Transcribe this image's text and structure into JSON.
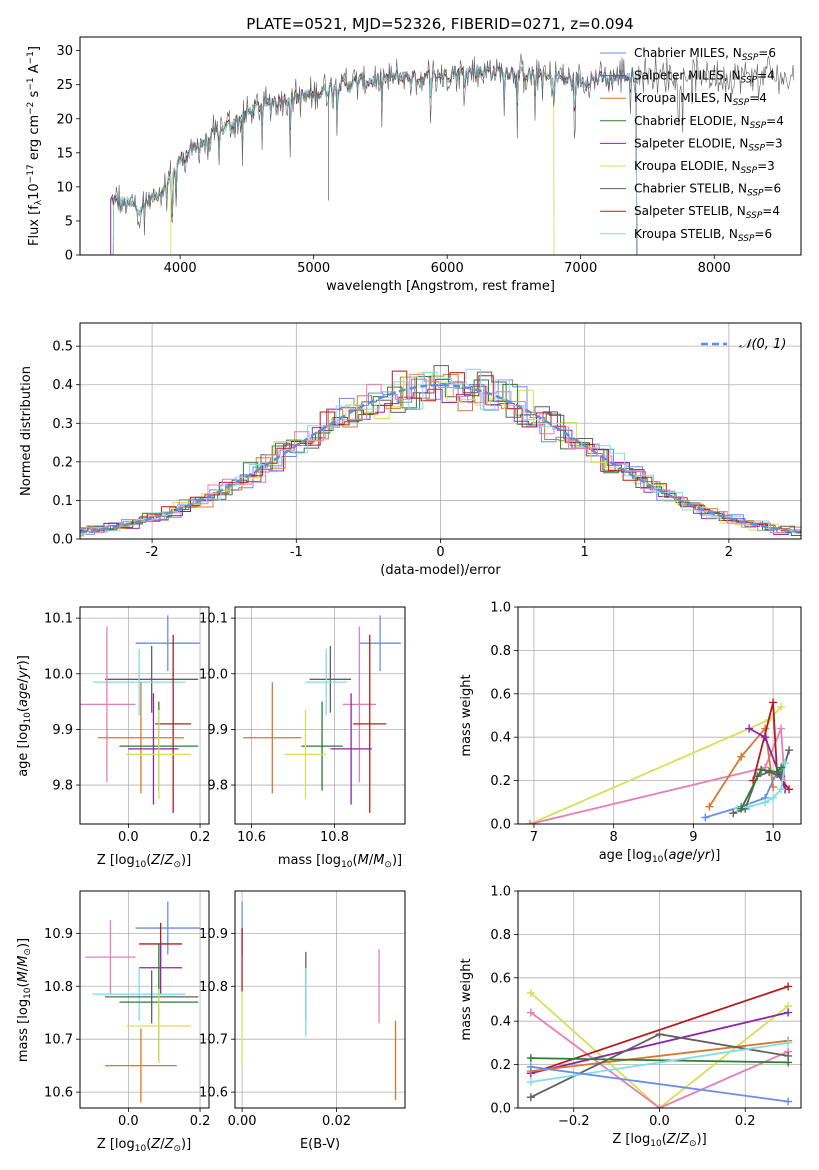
{
  "figure": {
    "title": "PLATE=0521, MJD=52326, FIBERID=0271, z=0.094"
  },
  "colors": {
    "Chabrier MILES": "#6a8ee8",
    "Salpeter MILES": "#9b2fb0",
    "Kroupa MILES": "#d9782c",
    "Chabrier ELODIE": "#2e7d32",
    "Salpeter ELODIE": "#8e24aa",
    "Kroupa ELODIE": "#d4e157",
    "Chabrier STELIB": "#616161",
    "Salpeter STELIB": "#b71c1c",
    "Kroupa STELIB": "#80deea",
    "pink": "#e57fb5"
  },
  "chart_data": [
    {
      "id": "spectrum",
      "type": "line",
      "xlabel": "wavelength [Angstrom, rest frame]",
      "ylabel": "Flux [f_λ10^-17 erg cm^-2 s^-1 A^-1]",
      "xlim": [
        3250,
        8650
      ],
      "ylim": [
        0,
        32
      ],
      "xticks": [
        4000,
        5000,
        6000,
        7000,
        8000
      ],
      "yticks": [
        0,
        5,
        10,
        15,
        20,
        25,
        30
      ],
      "legend_position": "upper right",
      "series": [
        {
          "name": "Chabrier MILES, N_SSP=6",
          "color_key": "Chabrier MILES"
        },
        {
          "name": "Salpeter MILES, N_SSP=4",
          "color_key": "Salpeter MILES"
        },
        {
          "name": "Kroupa MILES, N_SSP=4",
          "color_key": "Kroupa MILES"
        },
        {
          "name": "Chabrier ELODIE, N_SSP=4",
          "color_key": "Chabrier ELODIE"
        },
        {
          "name": "Salpeter ELODIE, N_SSP=3",
          "color_key": "Salpeter ELODIE"
        },
        {
          "name": "Kroupa ELODIE, N_SSP=3",
          "color_key": "Kroupa ELODIE"
        },
        {
          "name": "Chabrier STELIB, N_SSP=6",
          "color_key": "Chabrier STELIB"
        },
        {
          "name": "Salpeter STELIB, N_SSP=4",
          "color_key": "Salpeter STELIB"
        },
        {
          "name": "Kroupa STELIB, N_SSP=6",
          "color_key": "Kroupa STELIB"
        }
      ],
      "continuum": {
        "x": [
          3500,
          3700,
          3900,
          4000,
          4200,
          4400,
          4600,
          4800,
          5000,
          5200,
          5400,
          5600,
          5800,
          6000,
          6200,
          6400,
          6600,
          6800,
          7000,
          7200,
          7400
        ],
        "y": [
          8,
          7,
          10,
          14,
          17,
          19.5,
          22,
          23,
          23.5,
          25,
          25.5,
          26,
          26,
          26.5,
          27,
          27,
          26.5,
          26,
          25.5,
          26,
          26.5
        ]
      }
    },
    {
      "id": "residuals",
      "type": "line",
      "xlabel": "(data-model)/error",
      "ylabel": "Normed distribution",
      "xlim": [
        -2.5,
        2.5
      ],
      "ylim": [
        0,
        0.56
      ],
      "xticks": [
        -2,
        -1,
        0,
        1,
        2
      ],
      "yticks": [
        0.0,
        0.1,
        0.2,
        0.3,
        0.4,
        0.5
      ],
      "legend": "𝒩(0, 1)",
      "legend_position": "upper right",
      "grid": true
    },
    {
      "id": "age_vs_Z",
      "type": "scatter",
      "xlabel": "Z [log10(Z/Z⊙)]",
      "ylabel": "age [log10(age/yr)]",
      "xlim": [
        -0.135,
        0.225
      ],
      "ylim": [
        9.73,
        10.12
      ],
      "xticks": [
        0.0,
        0.2
      ],
      "yticks": [
        9.8,
        9.9,
        10.0,
        10.1
      ],
      "grid": true,
      "points": [
        {
          "color_key": "Chabrier MILES",
          "x": 0.11,
          "y": 10.055,
          "xerr": 0.09,
          "yerr": 0.05
        },
        {
          "color_key": "Chabrier STELIB",
          "x": 0.065,
          "y": 9.99,
          "xerr": 0.13,
          "yerr": 0.06
        },
        {
          "color_key": "Kroupa STELIB",
          "x": 0.03,
          "y": 9.985,
          "xerr": 0.13,
          "yerr": 0.06
        },
        {
          "color_key": "pink",
          "x": -0.06,
          "y": 9.945,
          "xerr": 0.08,
          "yerr": 0.14
        },
        {
          "color_key": "Salpeter STELIB",
          "x": 0.125,
          "y": 9.91,
          "xerr": 0.05,
          "yerr": 0.16
        },
        {
          "color_key": "Kroupa MILES",
          "x": 0.035,
          "y": 9.885,
          "xerr": 0.12,
          "yerr": 0.1
        },
        {
          "color_key": "Chabrier ELODIE",
          "x": 0.085,
          "y": 9.87,
          "xerr": 0.11,
          "yerr": 0.08
        },
        {
          "color_key": "Salpeter ELODIE",
          "x": 0.07,
          "y": 9.865,
          "xerr": 0.07,
          "yerr": 0.1
        },
        {
          "color_key": "Kroupa ELODIE",
          "x": 0.085,
          "y": 9.855,
          "xerr": 0.09,
          "yerr": 0.08
        }
      ]
    },
    {
      "id": "age_vs_mass",
      "type": "scatter",
      "xlabel": "mass [log10(M/M⊙)]",
      "ylabel": "",
      "xlim": [
        10.56,
        10.97
      ],
      "ylim": [
        9.73,
        10.12
      ],
      "xticks": [
        10.6,
        10.8
      ],
      "yticks": [
        9.8,
        9.9,
        10.0,
        10.1
      ],
      "grid": true,
      "points": [
        {
          "color_key": "Chabrier MILES",
          "x": 10.91,
          "y": 10.055,
          "xerr": 0.05,
          "yerr": 0.05
        },
        {
          "color_key": "Chabrier STELIB",
          "x": 10.79,
          "y": 9.99,
          "xerr": 0.05,
          "yerr": 0.06
        },
        {
          "color_key": "Kroupa STELIB",
          "x": 10.78,
          "y": 9.985,
          "xerr": 0.05,
          "yerr": 0.06
        },
        {
          "color_key": "pink",
          "x": 10.86,
          "y": 9.945,
          "xerr": 0.04,
          "yerr": 0.14
        },
        {
          "color_key": "Salpeter STELIB",
          "x": 10.885,
          "y": 9.91,
          "xerr": 0.04,
          "yerr": 0.16
        },
        {
          "color_key": "Kroupa MILES",
          "x": 10.65,
          "y": 9.885,
          "xerr": 0.07,
          "yerr": 0.1
        },
        {
          "color_key": "Chabrier ELODIE",
          "x": 10.77,
          "y": 9.87,
          "xerr": 0.05,
          "yerr": 0.08
        },
        {
          "color_key": "Salpeter ELODIE",
          "x": 10.84,
          "y": 9.865,
          "xerr": 0.05,
          "yerr": 0.1
        },
        {
          "color_key": "Kroupa ELODIE",
          "x": 10.73,
          "y": 9.855,
          "xerr": 0.05,
          "yerr": 0.08
        }
      ]
    },
    {
      "id": "weight_vs_age",
      "type": "line",
      "xlabel": "age [log10(age/yr)]",
      "ylabel": "mass weight",
      "xlim": [
        6.8,
        10.35
      ],
      "ylim": [
        0,
        1
      ],
      "xticks": [
        7,
        8,
        9,
        10
      ],
      "yticks": [
        0.0,
        0.2,
        0.4,
        0.6,
        0.8,
        1.0
      ],
      "grid": true,
      "series": [
        {
          "color_key": "Kroupa ELODIE",
          "x": [
            6.95,
            9.95,
            10.1
          ],
          "y": [
            0.0,
            0.48,
            0.54
          ]
        },
        {
          "color_key": "pink",
          "x": [
            6.95,
            9.9,
            10.1,
            10.15
          ],
          "y": [
            0.0,
            0.26,
            0.44,
            0.16
          ]
        },
        {
          "color_key": "Kroupa MILES",
          "x": [
            9.2,
            9.6,
            9.9,
            10.0
          ],
          "y": [
            0.08,
            0.31,
            0.44,
            0.17
          ]
        },
        {
          "color_key": "Salpeter STELIB",
          "x": [
            9.75,
            10.0,
            10.05,
            10.2
          ],
          "y": [
            0.2,
            0.56,
            0.23,
            0.16
          ]
        },
        {
          "color_key": "Salpeter ELODIE",
          "x": [
            9.7,
            9.9,
            10.15
          ],
          "y": [
            0.44,
            0.4,
            0.16
          ]
        },
        {
          "color_key": "Chabrier MILES",
          "x": [
            9.15,
            9.6,
            9.9,
            10.05,
            10.15
          ],
          "y": [
            0.03,
            0.08,
            0.12,
            0.24,
            0.28
          ]
        },
        {
          "color_key": "Chabrier STELIB",
          "x": [
            9.5,
            9.65,
            9.8,
            9.95,
            10.1,
            10.2
          ],
          "y": [
            0.05,
            0.07,
            0.22,
            0.24,
            0.22,
            0.34
          ]
        },
        {
          "color_key": "Kroupa STELIB",
          "x": [
            9.55,
            9.7,
            9.9,
            10.0,
            10.1,
            10.15
          ],
          "y": [
            0.07,
            0.08,
            0.1,
            0.12,
            0.16,
            0.28
          ]
        },
        {
          "color_key": "Chabrier ELODIE",
          "x": [
            9.6,
            9.85,
            10.05,
            10.1
          ],
          "y": [
            0.07,
            0.25,
            0.24,
            0.26
          ]
        }
      ]
    },
    {
      "id": "mass_vs_Z",
      "type": "scatter",
      "xlabel": "Z [log10(Z/Z⊙)]",
      "ylabel": "mass [log10(M/M⊙)]",
      "xlim": [
        -0.135,
        0.225
      ],
      "ylim": [
        10.57,
        10.98
      ],
      "xticks": [
        0.0,
        0.2
      ],
      "yticks": [
        10.6,
        10.7,
        10.8,
        10.9
      ],
      "grid": true,
      "points": [
        {
          "color_key": "Chabrier MILES",
          "x": 0.11,
          "y": 10.91,
          "xerr": 0.09,
          "yerr": 0.05
        },
        {
          "color_key": "Salpeter STELIB",
          "x": 0.09,
          "y": 10.88,
          "xerr": 0.06,
          "yerr": 0.04
        },
        {
          "color_key": "pink",
          "x": -0.05,
          "y": 10.855,
          "xerr": 0.07,
          "yerr": 0.07
        },
        {
          "color_key": "Salpeter ELODIE",
          "x": 0.09,
          "y": 10.835,
          "xerr": 0.06,
          "yerr": 0.05
        },
        {
          "color_key": "Kroupa STELIB",
          "x": 0.03,
          "y": 10.785,
          "xerr": 0.13,
          "yerr": 0.05
        },
        {
          "color_key": "Chabrier STELIB",
          "x": 0.065,
          "y": 10.78,
          "xerr": 0.13,
          "yerr": 0.05
        },
        {
          "color_key": "Chabrier ELODIE",
          "x": 0.085,
          "y": 10.77,
          "xerr": 0.11,
          "yerr": 0.11
        },
        {
          "color_key": "Kroupa ELODIE",
          "x": 0.085,
          "y": 10.725,
          "xerr": 0.09,
          "yerr": 0.07
        },
        {
          "color_key": "Kroupa MILES",
          "x": 0.035,
          "y": 10.65,
          "xerr": 0.1,
          "yerr": 0.07
        }
      ]
    },
    {
      "id": "mass_vs_ebv",
      "type": "scatter",
      "xlabel": "E(B-V)",
      "ylabel": "",
      "xlim": [
        -0.0015,
        0.0345
      ],
      "ylim": [
        10.57,
        10.98
      ],
      "xticks": [
        0.0,
        0.02
      ],
      "yticks": [
        10.6,
        10.7,
        10.8,
        10.9
      ],
      "grid": true,
      "points": [
        {
          "color_key": "Chabrier MILES",
          "x": 0.0,
          "y": 10.91,
          "xerr": 0.0,
          "yerr": 0.05
        },
        {
          "color_key": "Salpeter STELIB",
          "x": 0.0,
          "y": 10.85,
          "xerr": 0.0,
          "yerr": 0.06
        },
        {
          "color_key": "Kroupa ELODIE",
          "x": 0.0,
          "y": 10.72,
          "xerr": 0.0,
          "yerr": 0.07
        },
        {
          "color_key": "Chabrier STELIB",
          "x": 0.0135,
          "y": 10.8,
          "xerr": 0.0,
          "yerr": 0.065
        },
        {
          "color_key": "Kroupa STELIB",
          "x": 0.0135,
          "y": 10.77,
          "xerr": 0.0,
          "yerr": 0.065
        },
        {
          "color_key": "pink",
          "x": 0.029,
          "y": 10.8,
          "xerr": 0.0,
          "yerr": 0.07
        },
        {
          "color_key": "Kroupa MILES",
          "x": 0.0325,
          "y": 10.66,
          "xerr": 0.0,
          "yerr": 0.075
        }
      ]
    },
    {
      "id": "weight_vs_Z",
      "type": "line",
      "xlabel": "Z [log10(Z/Z⊙)]",
      "ylabel": "mass weight",
      "xlim": [
        -0.33,
        0.33
      ],
      "ylim": [
        0,
        1
      ],
      "xticks": [
        -0.2,
        0.0,
        0.2
      ],
      "yticks": [
        0.0,
        0.2,
        0.4,
        0.6,
        0.8,
        1.0
      ],
      "grid": true,
      "series": [
        {
          "color_key": "Kroupa ELODIE",
          "x": [
            -0.3,
            0.0,
            0.3
          ],
          "y": [
            0.53,
            0.0,
            0.47
          ]
        },
        {
          "color_key": "pink",
          "x": [
            -0.3,
            0.0,
            0.3
          ],
          "y": [
            0.44,
            0.0,
            0.26
          ]
        },
        {
          "color_key": "Salpeter STELIB",
          "x": [
            -0.3,
            0.3
          ],
          "y": [
            0.16,
            0.56
          ]
        },
        {
          "color_key": "Salpeter ELODIE",
          "x": [
            -0.3,
            0.3
          ],
          "y": [
            0.16,
            0.44
          ]
        },
        {
          "color_key": "Kroupa MILES",
          "x": [
            -0.3,
            0.3
          ],
          "y": [
            0.17,
            0.31
          ]
        },
        {
          "color_key": "Chabrier STELIB",
          "x": [
            -0.3,
            0.0,
            0.3
          ],
          "y": [
            0.05,
            0.34,
            0.24
          ]
        },
        {
          "color_key": "Chabrier ELODIE",
          "x": [
            -0.3,
            0.3
          ],
          "y": [
            0.23,
            0.21
          ]
        },
        {
          "color_key": "Kroupa STELIB",
          "x": [
            -0.3,
            0.3
          ],
          "y": [
            0.12,
            0.3
          ]
        },
        {
          "color_key": "Chabrier MILES",
          "x": [
            -0.3,
            0.3
          ],
          "y": [
            0.19,
            0.03
          ]
        }
      ]
    }
  ]
}
